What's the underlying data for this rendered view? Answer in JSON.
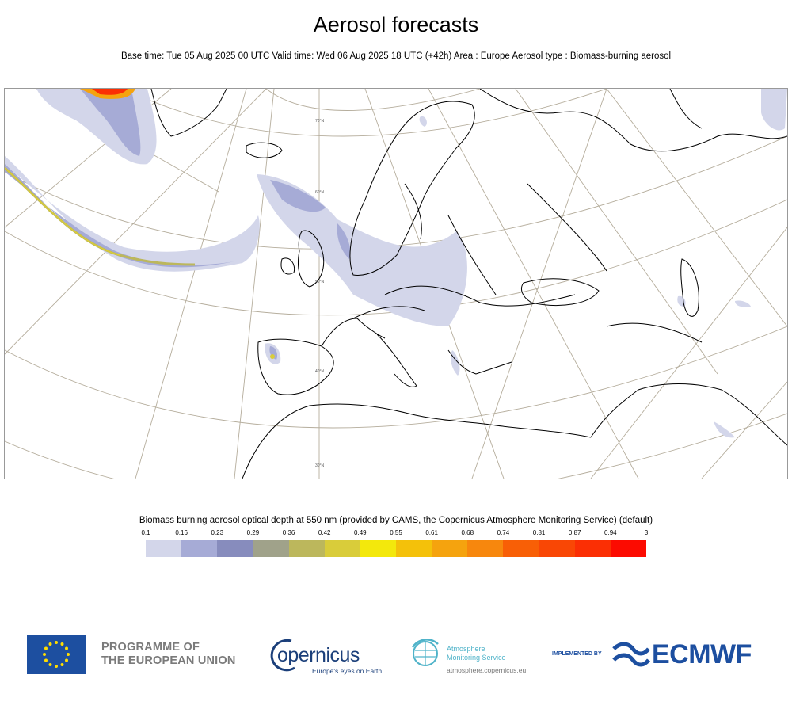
{
  "header": {
    "title": "Aerosol forecasts",
    "subtitle": "Base time: Tue 05 Aug 2025 00 UTC Valid time: Wed 06 Aug 2025 18 UTC (+42h) Area : Europe Aerosol type : Biomass-burning aerosol"
  },
  "map": {
    "area": "Europe",
    "parallel_labels": [
      "70°N",
      "60°N",
      "50°N",
      "40°N",
      "30°N"
    ]
  },
  "colorbar": {
    "title": "Biomass burning aerosol optical depth at 550 nm (provided by CAMS, the Copernicus Atmosphere Monitoring Service) (default)",
    "ticks": [
      "0.1",
      "0.16",
      "0.23",
      "0.29",
      "0.36",
      "0.42",
      "0.49",
      "0.55",
      "0.61",
      "0.68",
      "0.74",
      "0.81",
      "0.87",
      "0.94",
      "3"
    ],
    "colors": [
      "#d3d6ea",
      "#a6abd6",
      "#878cbd",
      "#a0a28a",
      "#bcb75c",
      "#d9cc3a",
      "#f3e80c",
      "#f4c10a",
      "#f5a30e",
      "#f7870d",
      "#f85f06",
      "#f94705",
      "#fb2f04",
      "#fc0b01"
    ]
  },
  "footer": {
    "eu_line1": "PROGRAMME OF",
    "eu_line2": "THE EUROPEAN UNION",
    "copernicus_word": "opernicus",
    "copernicus_tagline": "Europe's eyes on Earth",
    "ams_line1": "Atmosphere",
    "ams_line2": "Monitoring Service",
    "ams_url": "atmosphere.copernicus.eu",
    "implemented_by": "IMPLEMENTED BY",
    "ecmwf": "ECMWF"
  }
}
